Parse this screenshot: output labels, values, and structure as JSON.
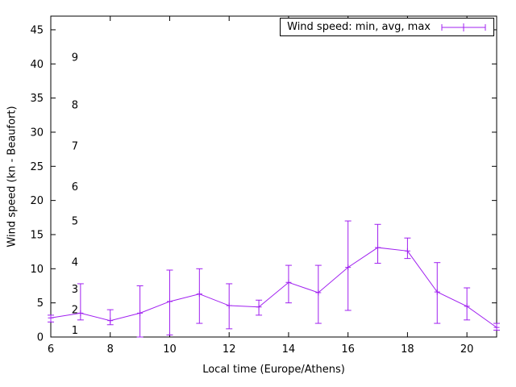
{
  "page": {
    "background": "#ffffff"
  },
  "chart_data": {
    "type": "line",
    "title": "",
    "legend": {
      "label": "Wind speed: min, avg, max",
      "position": "top-right",
      "boxed": true
    },
    "xlabel": "Local time (Europe/Athens)",
    "ylabel": "Wind speed (kn - Beaufort)",
    "line_color": "#a020f0",
    "axis_color": "#000000",
    "grid": false,
    "xlim": [
      6,
      21
    ],
    "ylim": [
      0,
      47
    ],
    "xticks": [
      6,
      8,
      10,
      12,
      14,
      16,
      18,
      20
    ],
    "yticks": [
      0,
      5,
      10,
      15,
      20,
      25,
      30,
      35,
      40,
      45
    ],
    "beaufort_scale": [
      {
        "beaufort": "1",
        "kn": 1
      },
      {
        "beaufort": "2",
        "kn": 4
      },
      {
        "beaufort": "3",
        "kn": 7
      },
      {
        "beaufort": "4",
        "kn": 11
      },
      {
        "beaufort": "5",
        "kn": 17
      },
      {
        "beaufort": "6",
        "kn": 22
      },
      {
        "beaufort": "7",
        "kn": 28
      },
      {
        "beaufort": "8",
        "kn": 34
      },
      {
        "beaufort": "9",
        "kn": 41
      }
    ],
    "x": [
      6,
      7,
      8,
      9,
      10,
      11,
      12,
      13,
      14,
      15,
      16,
      17,
      18,
      19,
      20,
      21
    ],
    "series": [
      {
        "name": "avg",
        "values": [
          2.8,
          3.5,
          2.4,
          3.5,
          5.2,
          6.3,
          4.6,
          4.4,
          8.0,
          6.5,
          10.2,
          13.1,
          12.6,
          6.6,
          4.5,
          1.4
        ]
      },
      {
        "name": "min",
        "values": [
          2.2,
          2.5,
          1.8,
          0.0,
          0.3,
          2.0,
          1.2,
          3.2,
          5.0,
          2.0,
          3.9,
          10.8,
          11.5,
          2.0,
          2.5,
          1.0
        ]
      },
      {
        "name": "max",
        "values": [
          3.2,
          7.8,
          4.0,
          7.5,
          9.8,
          10.0,
          7.8,
          5.4,
          10.5,
          10.5,
          17.0,
          16.5,
          14.5,
          10.9,
          7.2,
          2.0
        ]
      }
    ]
  }
}
